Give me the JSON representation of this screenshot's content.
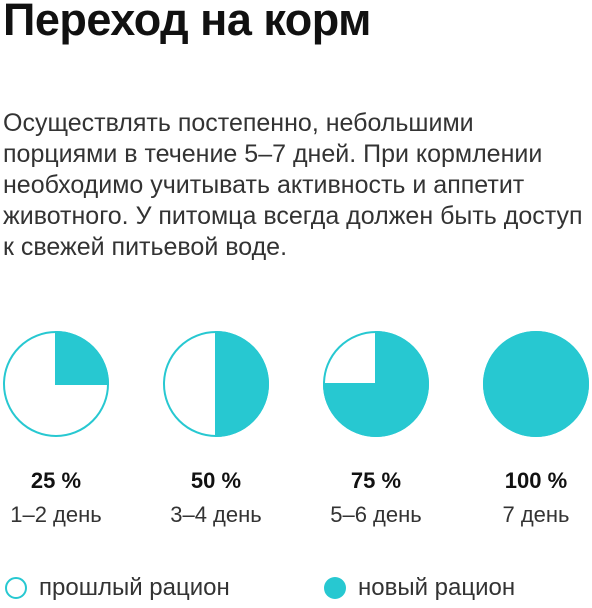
{
  "title": "Переход на корм",
  "description": "Осуществлять постепенно, небольшими порциями в течение 5–7 дней. При кормлении необходимо учитывать активность и аппетит животного. У питомца всегда должен быть доступ к свежей питьевой воде.",
  "colors": {
    "accent": "#27c8d1",
    "background": "#ffffff",
    "text": "#333333"
  },
  "chart_data": {
    "type": "pie",
    "title": "",
    "categories": [
      "1–2 день",
      "3–4 день",
      "5–6 день",
      "7 день"
    ],
    "series": [
      {
        "name": "новый рацион",
        "values": [
          25,
          50,
          75,
          100
        ]
      },
      {
        "name": "прошлый рацион",
        "values": [
          75,
          50,
          25,
          0
        ]
      }
    ],
    "value_labels": [
      "25 %",
      "50 %",
      "75 %",
      "100 %"
    ],
    "unit": "%"
  },
  "legend": {
    "old_label": "прошлый рацион",
    "new_label": "новый рацион"
  }
}
